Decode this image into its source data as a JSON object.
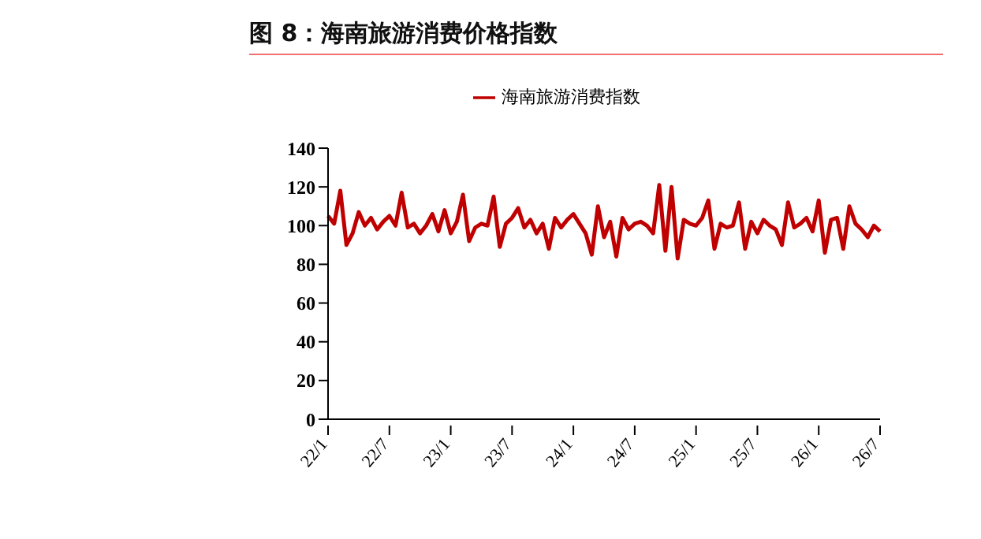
{
  "chart_data": {
    "type": "line",
    "title": "图 8：海南旅游消费价格指数",
    "categories": [
      "22/1",
      null,
      null,
      null,
      null,
      null,
      null,
      null,
      null,
      null,
      "22/7",
      null,
      null,
      null,
      null,
      null,
      null,
      null,
      null,
      null,
      "23/1",
      null,
      null,
      null,
      null,
      null,
      null,
      null,
      null,
      null,
      "23/7",
      null,
      null,
      null,
      null,
      null,
      null,
      null,
      null,
      null,
      "24/1",
      null,
      null,
      null,
      null,
      null,
      null,
      null,
      null,
      null,
      "24/7",
      null,
      null,
      null,
      null,
      null,
      null,
      null,
      null,
      null,
      "25/1",
      null,
      null,
      null,
      null,
      null,
      null,
      null,
      null,
      null,
      "25/7",
      null,
      null,
      null,
      null,
      null,
      null,
      null,
      null,
      null,
      "26/1",
      null,
      null,
      null,
      null,
      null,
      null,
      null,
      null,
      null,
      "26/7"
    ],
    "series": [
      {
        "name": "海南旅游消费指数",
        "color": "#c00000",
        "values": [
          105,
          101,
          118,
          90,
          96,
          107,
          100,
          104,
          98,
          102,
          105,
          100,
          117,
          99,
          101,
          96,
          100,
          106,
          97,
          108,
          96,
          102,
          116,
          92,
          99,
          101,
          100,
          115,
          89,
          101,
          104,
          109,
          99,
          103,
          96,
          101,
          88,
          104,
          99,
          103,
          106,
          101,
          96,
          85,
          110,
          94,
          102,
          84,
          104,
          98,
          101,
          102,
          100,
          96,
          121,
          87,
          120,
          83,
          103,
          101,
          100,
          104,
          113,
          88,
          101,
          99,
          100,
          112,
          88,
          102,
          96,
          103,
          100,
          98,
          90,
          112,
          99,
          101,
          104,
          97,
          113,
          86,
          103,
          104,
          88,
          110,
          101,
          98,
          94,
          100,
          97
        ]
      }
    ],
    "ylim": [
      0,
      140
    ],
    "yticks": [
      0,
      20,
      40,
      60,
      80,
      100,
      120,
      140
    ],
    "legend": "top",
    "marker": "none",
    "line_style": "solid",
    "grid": false
  }
}
